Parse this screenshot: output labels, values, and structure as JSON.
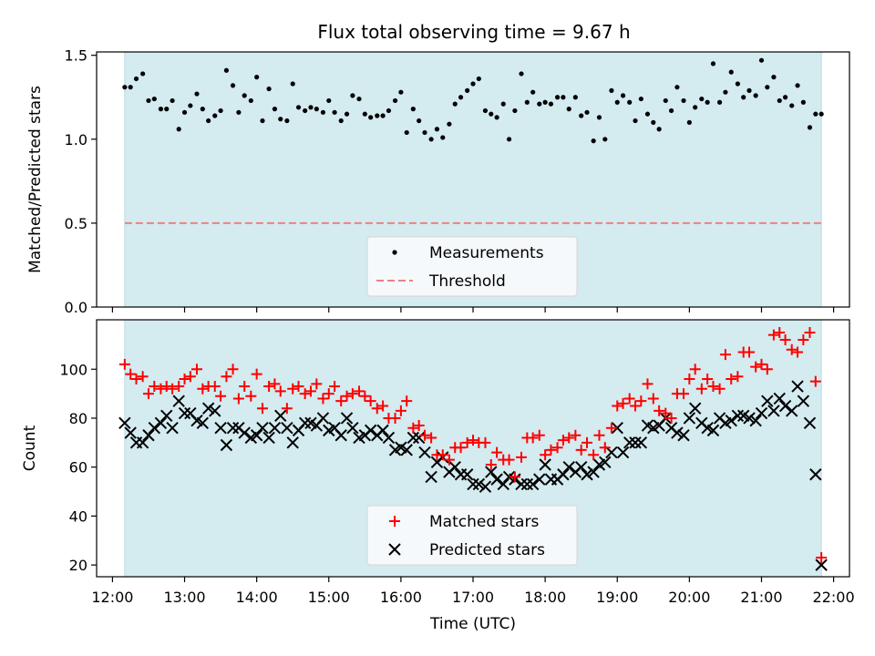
{
  "figure": {
    "title": "Flux total observing time = 9.67 h",
    "xlabel": "Time (UTC)"
  },
  "colors": {
    "observing_span": "#d4ebf0",
    "measurements": "#000000",
    "threshold": "#f08080",
    "matched": "#ff0000",
    "predicted": "#000000"
  },
  "chart_data": [
    {
      "type": "scatter",
      "ylabel": "Matched/Predicted stars",
      "x_unit": "hours UTC",
      "xlim": [
        11.78,
        22.22
      ],
      "ylim": [
        0,
        1.52
      ],
      "yticks": [
        0.0,
        0.5,
        1.0,
        1.5
      ],
      "ytick_labels": [
        "0.0",
        "0.5",
        "1.0",
        "1.5"
      ],
      "shaded_span": [
        12.17,
        21.83
      ],
      "threshold": 0.5,
      "legend": {
        "position": "lower center",
        "entries": [
          "Measurements",
          "Threshold"
        ]
      },
      "series": [
        {
          "name": "Measurements",
          "x": [
            12.17,
            12.25,
            12.33,
            12.42,
            12.5,
            12.58,
            12.67,
            12.75,
            12.83,
            12.92,
            13.0,
            13.08,
            13.17,
            13.25,
            13.33,
            13.42,
            13.5,
            13.58,
            13.67,
            13.75,
            13.83,
            13.92,
            14.0,
            14.08,
            14.17,
            14.25,
            14.33,
            14.42,
            14.5,
            14.58,
            14.67,
            14.75,
            14.83,
            14.92,
            15.0,
            15.08,
            15.17,
            15.25,
            15.33,
            15.42,
            15.5,
            15.58,
            15.67,
            15.75,
            15.83,
            15.92,
            16.0,
            16.08,
            16.17,
            16.25,
            16.33,
            16.42,
            16.5,
            16.58,
            16.67,
            16.75,
            16.83,
            16.92,
            17.0,
            17.08,
            17.17,
            17.25,
            17.33,
            17.42,
            17.5,
            17.58,
            17.67,
            17.75,
            17.83,
            17.92,
            18.0,
            18.08,
            18.17,
            18.25,
            18.33,
            18.42,
            18.5,
            18.58,
            18.67,
            18.75,
            18.83,
            18.92,
            19.0,
            19.08,
            19.17,
            19.25,
            19.33,
            19.42,
            19.5,
            19.58,
            19.67,
            19.75,
            19.83,
            19.92,
            20.0,
            20.08,
            20.17,
            20.25,
            20.33,
            20.42,
            20.5,
            20.58,
            20.67,
            20.75,
            20.83,
            20.92,
            21.0,
            21.08,
            21.17,
            21.25,
            21.33,
            21.42,
            21.5,
            21.58,
            21.67,
            21.75,
            21.83
          ],
          "y": [
            1.31,
            1.31,
            1.36,
            1.39,
            1.23,
            1.24,
            1.18,
            1.18,
            1.23,
            1.06,
            1.16,
            1.2,
            1.27,
            1.18,
            1.11,
            1.14,
            1.17,
            1.41,
            1.32,
            1.16,
            1.26,
            1.23,
            1.37,
            1.11,
            1.3,
            1.18,
            1.12,
            1.11,
            1.33,
            1.19,
            1.17,
            1.19,
            1.18,
            1.16,
            1.23,
            1.16,
            1.11,
            1.15,
            1.26,
            1.24,
            1.15,
            1.13,
            1.14,
            1.14,
            1.17,
            1.23,
            1.28,
            1.04,
            1.18,
            1.11,
            1.04,
            1.0,
            1.06,
            1.01,
            1.09,
            1.21,
            1.25,
            1.29,
            1.33,
            1.36,
            1.17,
            1.15,
            1.13,
            1.21,
            1.0,
            1.17,
            1.39,
            1.22,
            1.28,
            1.21,
            1.22,
            1.21,
            1.25,
            1.25,
            1.18,
            1.25,
            1.14,
            1.16,
            0.99,
            1.13,
            1.0,
            1.29,
            1.22,
            1.26,
            1.22,
            1.11,
            1.24,
            1.15,
            1.1,
            1.06,
            1.23,
            1.17,
            1.31,
            1.23,
            1.1,
            1.19,
            1.24,
            1.22,
            1.45,
            1.22,
            1.28,
            1.4,
            1.33,
            1.25,
            1.29,
            1.26,
            1.47,
            1.31,
            1.37,
            1.23,
            1.25,
            1.2,
            1.32,
            1.22,
            1.07,
            1.15,
            1.15
          ]
        }
      ]
    },
    {
      "type": "scatter",
      "ylabel": "Count",
      "x_unit": "hours UTC",
      "xlim": [
        11.78,
        22.22
      ],
      "xticks": [
        12,
        13,
        14,
        15,
        16,
        17,
        18,
        19,
        20,
        21,
        22
      ],
      "xtick_labels": [
        "12:00",
        "13:00",
        "14:00",
        "15:00",
        "16:00",
        "17:00",
        "18:00",
        "19:00",
        "20:00",
        "21:00",
        "22:00"
      ],
      "ylim": [
        15.2,
        120.2
      ],
      "yticks": [
        20,
        40,
        60,
        80,
        100
      ],
      "ytick_labels": [
        "20",
        "40",
        "60",
        "80",
        "100"
      ],
      "shaded_span": [
        12.17,
        21.83
      ],
      "legend": {
        "position": "lower center",
        "entries": [
          "Matched stars",
          "Predicted stars"
        ]
      },
      "series": [
        {
          "name": "Matched stars",
          "marker": "+",
          "x": [
            12.17,
            12.25,
            12.33,
            12.42,
            12.5,
            12.58,
            12.67,
            12.75,
            12.83,
            12.92,
            13.0,
            13.08,
            13.17,
            13.25,
            13.33,
            13.42,
            13.5,
            13.58,
            13.67,
            13.75,
            13.83,
            13.92,
            14.0,
            14.08,
            14.17,
            14.25,
            14.33,
            14.42,
            14.5,
            14.58,
            14.67,
            14.75,
            14.83,
            14.92,
            15.0,
            15.08,
            15.17,
            15.25,
            15.33,
            15.42,
            15.5,
            15.58,
            15.67,
            15.75,
            15.83,
            15.92,
            16.0,
            16.08,
            16.17,
            16.25,
            16.33,
            16.42,
            16.5,
            16.58,
            16.67,
            16.75,
            16.83,
            16.92,
            17.0,
            17.08,
            17.17,
            17.25,
            17.33,
            17.42,
            17.5,
            17.58,
            17.67,
            17.75,
            17.83,
            17.92,
            18.0,
            18.08,
            18.17,
            18.25,
            18.33,
            18.42,
            18.5,
            18.58,
            18.67,
            18.75,
            18.83,
            18.92,
            19.0,
            19.08,
            19.17,
            19.25,
            19.33,
            19.42,
            19.5,
            19.58,
            19.67,
            19.75,
            19.83,
            19.92,
            20.0,
            20.08,
            20.17,
            20.25,
            20.33,
            20.42,
            20.5,
            20.58,
            20.67,
            20.75,
            20.83,
            20.92,
            21.0,
            21.08,
            21.17,
            21.25,
            21.33,
            21.42,
            21.5,
            21.58,
            21.67,
            21.75,
            21.83
          ],
          "y": [
            102,
            98,
            96,
            97,
            90,
            93,
            92,
            93,
            92,
            93,
            96,
            97,
            100,
            92,
            93,
            93,
            89,
            97,
            100,
            88,
            93,
            89,
            98,
            84,
            93,
            94,
            91,
            84,
            92,
            93,
            90,
            91,
            94,
            88,
            90,
            93,
            87,
            89,
            90,
            91,
            89,
            87,
            84,
            85,
            80,
            80,
            83,
            87,
            76,
            77,
            73,
            72,
            65,
            65,
            63,
            68,
            68,
            70,
            71,
            70,
            70,
            61,
            66,
            63,
            63,
            56,
            64,
            72,
            72,
            73,
            65,
            67,
            68,
            71,
            72,
            73,
            67,
            70,
            65,
            73,
            68,
            76,
            85,
            86,
            88,
            85,
            87,
            94,
            88,
            83,
            82,
            80,
            90,
            90,
            96,
            100,
            92,
            96,
            93,
            92,
            106,
            96,
            97,
            107,
            107,
            101,
            102,
            100,
            114,
            115,
            112,
            108,
            107,
            112,
            115,
            95,
            23
          ]
        },
        {
          "name": "Predicted stars",
          "marker": "x",
          "x": [
            12.17,
            12.25,
            12.33,
            12.42,
            12.5,
            12.58,
            12.67,
            12.75,
            12.83,
            12.92,
            13.0,
            13.08,
            13.17,
            13.25,
            13.33,
            13.42,
            13.5,
            13.58,
            13.67,
            13.75,
            13.83,
            13.92,
            14.0,
            14.08,
            14.17,
            14.25,
            14.33,
            14.42,
            14.5,
            14.58,
            14.67,
            14.75,
            14.83,
            14.92,
            15.0,
            15.08,
            15.17,
            15.25,
            15.33,
            15.42,
            15.5,
            15.58,
            15.67,
            15.75,
            15.83,
            15.92,
            16.0,
            16.08,
            16.17,
            16.25,
            16.33,
            16.42,
            16.5,
            16.58,
            16.67,
            16.75,
            16.83,
            16.92,
            17.0,
            17.08,
            17.17,
            17.25,
            17.33,
            17.42,
            17.5,
            17.58,
            17.67,
            17.75,
            17.83,
            17.92,
            18.0,
            18.08,
            18.17,
            18.25,
            18.33,
            18.42,
            18.5,
            18.58,
            18.67,
            18.75,
            18.83,
            18.92,
            19.0,
            19.08,
            19.17,
            19.25,
            19.33,
            19.42,
            19.5,
            19.58,
            19.67,
            19.75,
            19.83,
            19.92,
            20.0,
            20.08,
            20.17,
            20.25,
            20.33,
            20.42,
            20.5,
            20.58,
            20.67,
            20.75,
            20.83,
            20.92,
            21.0,
            21.08,
            21.17,
            21.25,
            21.33,
            21.42,
            21.5,
            21.58,
            21.67,
            21.75,
            21.83
          ],
          "y": [
            78,
            74,
            70,
            70,
            73,
            76,
            78,
            81,
            76,
            87,
            82,
            82,
            79,
            78,
            84,
            83,
            76,
            69,
            76,
            76,
            74,
            72,
            73,
            76,
            72,
            76,
            81,
            76,
            70,
            75,
            78,
            78,
            77,
            80,
            75,
            76,
            73,
            80,
            76,
            72,
            73,
            75,
            73,
            75,
            72,
            67,
            68,
            67,
            72,
            72,
            66,
            56,
            62,
            64,
            58,
            60,
            57,
            57,
            53,
            53,
            52,
            58,
            55,
            53,
            56,
            55,
            53,
            53,
            53,
            55,
            61,
            55,
            55,
            57,
            60,
            58,
            60,
            57,
            58,
            61,
            62,
            66,
            76,
            66,
            70,
            70,
            70,
            77,
            76,
            77,
            80,
            76,
            74,
            73,
            80,
            84,
            78,
            76,
            75,
            80,
            78,
            79,
            81,
            81,
            80,
            79,
            82,
            87,
            83,
            88,
            85,
            83,
            93,
            87,
            78,
            57,
            20
          ]
        }
      ]
    }
  ]
}
